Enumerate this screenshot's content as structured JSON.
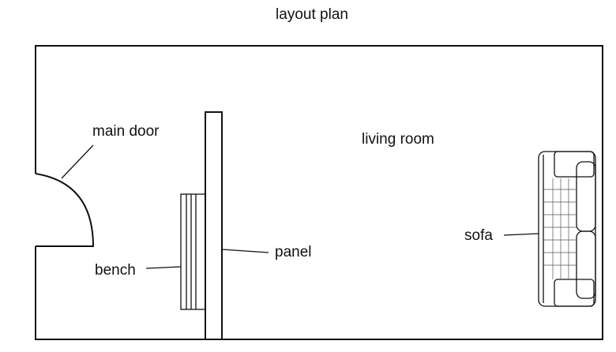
{
  "title": "layout plan",
  "labels": {
    "main_door": "main door",
    "living_room": "living room",
    "sofa": "sofa",
    "panel": "panel",
    "bench": "bench"
  }
}
